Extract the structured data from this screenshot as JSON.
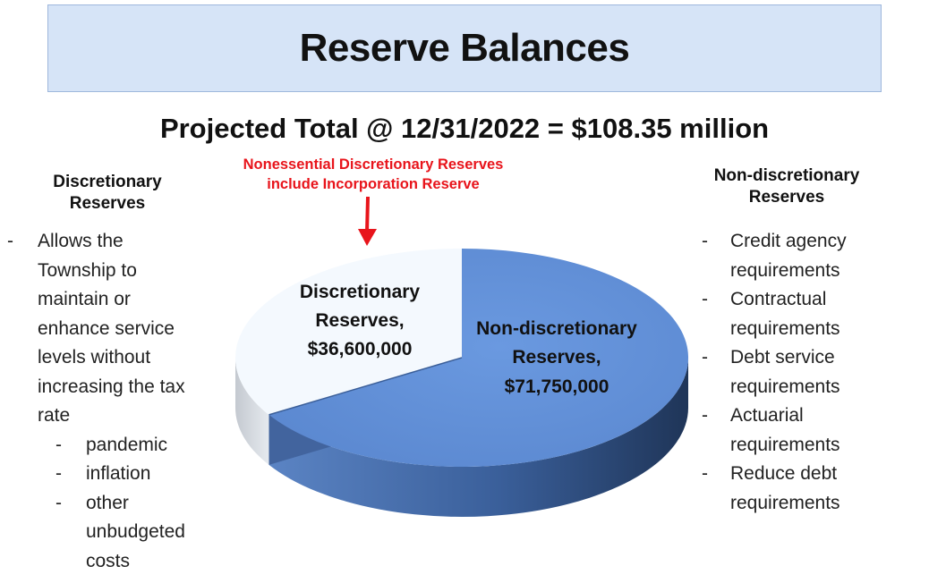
{
  "header": {
    "title": "Reserve Balances"
  },
  "subtitle": "Projected Total @ 12/31/2022 = $108.35 million",
  "annotation": {
    "line1": "Nonessential Discretionary Reserves",
    "line2": "include Incorporation Reserve"
  },
  "left": {
    "title_line1": "Discretionary",
    "title_line2": "Reserves",
    "bullet_lines": [
      "Allows the",
      "Township to",
      "maintain or",
      "enhance service",
      "levels without",
      "increasing the tax",
      "rate"
    ],
    "sub_items": [
      {
        "lines": [
          "pandemic"
        ]
      },
      {
        "lines": [
          "inflation"
        ]
      },
      {
        "lines": [
          "other",
          "unbudgeted",
          "costs"
        ]
      }
    ]
  },
  "right": {
    "title_line1": "Non-discretionary",
    "title_line2": "Reserves",
    "items": [
      {
        "lines": [
          "Credit agency",
          "requirements"
        ]
      },
      {
        "lines": [
          "Contractual",
          "requirements"
        ]
      },
      {
        "lines": [
          "Debt service",
          "requirements"
        ]
      },
      {
        "lines": [
          "Actuarial",
          "requirements"
        ]
      },
      {
        "lines": [
          "Reduce debt",
          "requirements"
        ]
      }
    ]
  },
  "chart_data": {
    "type": "pie",
    "title": "",
    "slices": [
      {
        "name": "Non-discretionary Reserves,",
        "label_value": "$71,750,000",
        "value": 71750000,
        "color": "#6091da"
      },
      {
        "name": "Discretionary Reserves,",
        "label_value": "$36,600,000",
        "value": 36600000,
        "color": "#f4f9fe"
      }
    ],
    "total": 108350000,
    "style": "3d-tilted"
  }
}
